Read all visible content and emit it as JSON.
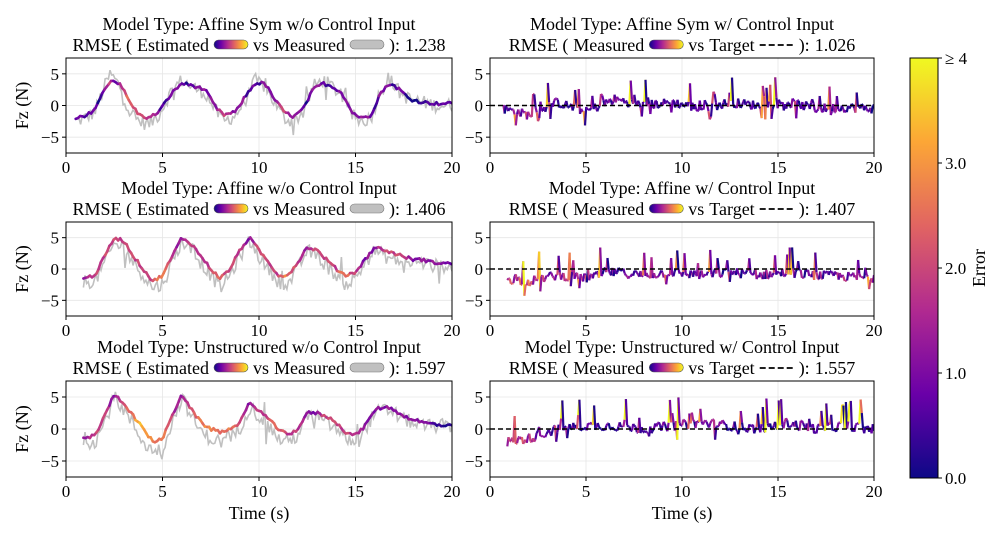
{
  "figure": {
    "colorbar": {
      "label": "Error",
      "tick_labels": [
        "0.0",
        "1.0",
        "2.0",
        "3.0",
        "≥ 4"
      ],
      "tick_values": [
        0,
        1,
        2,
        3,
        4
      ],
      "range": [
        0,
        4
      ],
      "colormap": [
        "#0d0887",
        "#6a00a8",
        "#b12a90",
        "#e16462",
        "#fca636",
        "#f0f921"
      ]
    },
    "ylabel": "Fz (N)",
    "xlabel": "Time (s)",
    "y_tick_labels": [
      "5",
      "0",
      "−5"
    ],
    "x_tick_labels": [
      "0",
      "5",
      "10",
      "15",
      "20"
    ],
    "legend_words": {
      "estimated": "Estimated",
      "measured": "Measured",
      "target": "Target",
      "vs": "vs",
      "rmse_prefix": "RMSE (",
      "rmse_suffix": "):"
    },
    "measured_color": "#c0c0c0",
    "target_color": "#000000"
  },
  "chart_data": [
    {
      "type": "line",
      "title": "Model Type: Affine Sym w/o Control Input",
      "legend_kind": "estimated",
      "rmse": "1.238",
      "xlim": [
        0,
        20
      ],
      "ylim": [
        -7.5,
        7.5
      ],
      "grid": true,
      "x_ticks": [
        0,
        5,
        10,
        15,
        20
      ],
      "y_ticks": [
        5,
        0,
        -5
      ],
      "series": [
        {
          "name": "Estimated",
          "x": [
            0.5,
            1.0,
            1.5,
            2.0,
            2.3,
            2.8,
            3.3,
            3.8,
            4.3,
            4.8,
            5.5,
            6.0,
            6.5,
            7.2,
            7.8,
            8.2,
            8.8,
            9.3,
            9.8,
            10.3,
            10.8,
            11.3,
            11.8,
            12.3,
            12.8,
            13.3,
            13.8,
            14.3,
            14.8,
            15.3,
            15.8,
            16.3,
            16.8,
            17.3,
            17.8,
            18.5,
            19.2,
            20.0
          ],
          "y": [
            -2.0,
            -1.8,
            -0.5,
            2.5,
            4.0,
            3.5,
            0.5,
            -1.5,
            -2.0,
            -1.0,
            2.0,
            3.5,
            3.2,
            2.5,
            -0.5,
            -1.5,
            -1.0,
            1.5,
            3.5,
            3.5,
            1.0,
            -1.0,
            -1.8,
            -0.5,
            2.5,
            3.5,
            3.0,
            2.0,
            -1.0,
            -2.0,
            -1.5,
            2.0,
            3.5,
            2.5,
            1.0,
            0.5,
            0.3,
            0.3
          ]
        },
        {
          "name": "Measured",
          "x": [
            0.5,
            1.0,
            1.5,
            2.0,
            2.3,
            2.8,
            3.3,
            3.8,
            4.3,
            4.8,
            5.5,
            6.0,
            6.5,
            7.2,
            7.8,
            8.2,
            8.8,
            9.3,
            9.8,
            10.3,
            10.8,
            11.3,
            11.8,
            12.3,
            12.8,
            13.3,
            13.8,
            14.3,
            14.8,
            15.3,
            15.8,
            16.3,
            16.8,
            17.3,
            17.8,
            18.5,
            19.2,
            20.0
          ],
          "y": [
            -2.5,
            -2.0,
            -1.0,
            3.0,
            5.0,
            3.0,
            -1.0,
            -2.5,
            -3.0,
            -1.5,
            2.5,
            4.0,
            3.0,
            2.0,
            -1.0,
            -2.5,
            -1.5,
            1.0,
            4.0,
            3.0,
            0.5,
            -2.0,
            -2.5,
            -1.0,
            3.0,
            4.0,
            3.0,
            1.5,
            -1.5,
            -2.5,
            -2.0,
            2.5,
            4.0,
            2.0,
            1.0,
            0.5,
            0.0,
            0.0
          ]
        }
      ]
    },
    {
      "type": "line",
      "title": "Model Type: Affine Sym w/ Control Input",
      "legend_kind": "target",
      "rmse": "1.026",
      "xlim": [
        0,
        20
      ],
      "ylim": [
        -7.5,
        7.5
      ],
      "grid": true,
      "x_ticks": [
        0,
        5,
        10,
        15,
        20
      ],
      "y_ticks": [
        5,
        0,
        -5
      ],
      "series": [
        {
          "name": "Measured",
          "x": [
            0.7,
            2.0,
            3.5,
            5.0,
            6.5,
            8.0,
            9.5,
            11.0,
            12.5,
            14.0,
            15.5,
            17.0,
            18.5,
            20.0
          ],
          "y": [
            -0.5,
            -1.5,
            0.5,
            -1.0,
            1.0,
            0.0,
            0.5,
            -0.5,
            0.5,
            0.0,
            0.5,
            -0.5,
            -0.3,
            -0.5
          ]
        },
        {
          "name": "Target",
          "x": [
            0,
            20
          ],
          "y": [
            0,
            0
          ]
        }
      ]
    },
    {
      "type": "line",
      "title": "Model Type: Affine w/o Control Input",
      "legend_kind": "estimated",
      "rmse": "1.406",
      "xlim": [
        0,
        20
      ],
      "ylim": [
        -7.5,
        7.5
      ],
      "grid": true,
      "x_ticks": [
        0,
        5,
        10,
        15,
        20
      ],
      "y_ticks": [
        5,
        0,
        -5
      ],
      "series": [
        {
          "name": "Estimated",
          "x": [
            0.9,
            1.5,
            2.0,
            2.5,
            3.0,
            3.5,
            4.0,
            4.5,
            5.0,
            5.5,
            6.0,
            6.5,
            7.0,
            7.5,
            8.0,
            8.5,
            9.0,
            9.5,
            10.0,
            10.5,
            11.0,
            11.5,
            12.0,
            12.5,
            13.0,
            13.5,
            14.0,
            14.5,
            15.0,
            15.5,
            16.0,
            16.5,
            17.0,
            17.5,
            18.0,
            18.5,
            19.0,
            19.5,
            20.0
          ],
          "y": [
            -1.5,
            -1.0,
            2.0,
            5.0,
            4.5,
            2.0,
            0.0,
            -2.0,
            -1.0,
            2.0,
            5.0,
            4.0,
            2.0,
            0.0,
            -1.5,
            0.0,
            3.0,
            5.0,
            3.0,
            1.0,
            -1.0,
            -1.0,
            1.0,
            3.5,
            3.0,
            1.5,
            0.0,
            -1.0,
            -0.5,
            1.5,
            3.5,
            3.0,
            2.5,
            2.0,
            1.5,
            1.5,
            1.0,
            1.0,
            0.8
          ]
        },
        {
          "name": "Measured",
          "x": [
            0.9,
            1.5,
            2.0,
            2.5,
            3.0,
            3.5,
            4.0,
            4.5,
            5.0,
            5.5,
            6.0,
            6.5,
            7.0,
            7.5,
            8.0,
            8.5,
            9.0,
            9.5,
            10.0,
            10.5,
            11.0,
            11.5,
            12.0,
            12.5,
            13.0,
            13.5,
            14.0,
            14.5,
            15.0,
            15.5,
            16.0,
            16.5,
            17.0,
            17.5,
            18.0,
            18.5,
            19.0,
            19.5,
            20.0
          ],
          "y": [
            -2.0,
            -2.0,
            1.0,
            4.0,
            3.5,
            1.0,
            -1.0,
            -3.0,
            -2.5,
            1.0,
            4.5,
            3.0,
            1.0,
            -1.0,
            -3.0,
            -1.0,
            2.0,
            4.5,
            2.0,
            0.0,
            -2.0,
            -2.5,
            0.0,
            3.0,
            2.0,
            0.5,
            -1.0,
            -2.5,
            -1.5,
            1.0,
            3.0,
            2.0,
            1.5,
            1.0,
            1.0,
            1.0,
            0.5,
            0.5,
            0.5
          ]
        }
      ]
    },
    {
      "type": "line",
      "title": "Model Type: Affine w/ Control Input",
      "legend_kind": "target",
      "rmse": "1.407",
      "xlim": [
        0,
        20
      ],
      "ylim": [
        -7.5,
        7.5
      ],
      "grid": true,
      "x_ticks": [
        0,
        5,
        10,
        15,
        20
      ],
      "y_ticks": [
        5,
        0,
        -5
      ],
      "series": [
        {
          "name": "Measured",
          "x": [
            0.9,
            2.0,
            3.5,
            5.0,
            6.5,
            8.0,
            9.5,
            11.0,
            12.5,
            14.0,
            15.5,
            17.0,
            18.5,
            20.0
          ],
          "y": [
            -1.5,
            -2.0,
            -1.0,
            -1.5,
            -0.5,
            -1.0,
            -0.5,
            -1.0,
            -0.5,
            -1.0,
            -0.5,
            -1.0,
            -1.2,
            -1.5
          ]
        },
        {
          "name": "Target",
          "x": [
            0,
            20
          ],
          "y": [
            0,
            0
          ]
        }
      ]
    },
    {
      "type": "line",
      "title": "Model Type: Unstructured w/o Control Input",
      "legend_kind": "estimated",
      "rmse": "1.597",
      "xlim": [
        0,
        20
      ],
      "ylim": [
        -7.5,
        7.5
      ],
      "grid": true,
      "x_ticks": [
        0,
        5,
        10,
        15,
        20
      ],
      "y_ticks": [
        5,
        0,
        -5
      ],
      "series": [
        {
          "name": "Estimated",
          "x": [
            0.9,
            1.5,
            2.0,
            2.5,
            3.0,
            3.5,
            4.0,
            4.5,
            5.0,
            5.5,
            6.0,
            6.5,
            7.0,
            7.5,
            8.0,
            8.5,
            9.0,
            9.5,
            10.0,
            10.5,
            11.0,
            11.5,
            12.0,
            12.5,
            13.0,
            13.5,
            14.0,
            14.5,
            15.0,
            15.5,
            16.0,
            16.5,
            17.0,
            17.5,
            18.0,
            18.5,
            19.0,
            19.5,
            20.0
          ],
          "y": [
            -1.5,
            -1.0,
            2.0,
            5.5,
            4.0,
            2.0,
            0.0,
            -2.0,
            -1.5,
            2.0,
            5.5,
            3.0,
            1.0,
            0.0,
            -0.5,
            0.0,
            1.0,
            4.0,
            3.0,
            1.5,
            0.0,
            -1.0,
            0.0,
            2.5,
            2.5,
            2.0,
            1.0,
            -0.5,
            -1.0,
            0.5,
            3.0,
            3.5,
            3.0,
            2.0,
            1.5,
            1.0,
            0.8,
            0.5,
            0.5
          ]
        },
        {
          "name": "Measured",
          "x": [
            0.9,
            1.5,
            2.0,
            2.5,
            3.0,
            3.5,
            4.0,
            4.5,
            5.0,
            5.5,
            6.0,
            6.5,
            7.0,
            7.5,
            8.0,
            8.5,
            9.0,
            9.5,
            10.0,
            10.5,
            11.0,
            11.5,
            12.0,
            12.5,
            13.0,
            13.5,
            14.0,
            14.5,
            15.0,
            15.5,
            16.0,
            16.5,
            17.0,
            17.5,
            18.0,
            18.5,
            19.0,
            19.5,
            20.0
          ],
          "y": [
            -2.0,
            -2.0,
            1.0,
            5.0,
            3.0,
            0.5,
            -2.0,
            -3.5,
            -3.0,
            1.0,
            5.0,
            2.0,
            -0.5,
            -1.5,
            -2.0,
            -1.5,
            0.0,
            3.5,
            2.0,
            0.5,
            -1.5,
            -2.0,
            -1.0,
            2.0,
            2.0,
            1.0,
            0.0,
            -1.5,
            -2.0,
            0.0,
            2.5,
            3.0,
            2.5,
            1.5,
            1.0,
            0.5,
            0.5,
            0.5,
            0.5
          ]
        }
      ]
    },
    {
      "type": "line",
      "title": "Model Type: Unstructured w/ Control Input",
      "legend_kind": "target",
      "rmse": "1.557",
      "xlim": [
        0,
        20
      ],
      "ylim": [
        -7.5,
        7.5
      ],
      "grid": true,
      "x_ticks": [
        0,
        5,
        10,
        15,
        20
      ],
      "y_ticks": [
        5,
        0,
        -5
      ],
      "series": [
        {
          "name": "Measured",
          "x": [
            0.9,
            2.0,
            3.5,
            5.0,
            6.5,
            8.0,
            9.5,
            11.0,
            12.5,
            14.0,
            15.5,
            17.0,
            18.5,
            20.0
          ],
          "y": [
            -2.0,
            -1.5,
            0.0,
            0.5,
            0.5,
            0.0,
            0.5,
            1.0,
            0.5,
            0.0,
            1.0,
            0.0,
            0.5,
            0.0
          ]
        },
        {
          "name": "Target",
          "x": [
            0,
            20
          ],
          "y": [
            0,
            0
          ]
        }
      ]
    }
  ]
}
